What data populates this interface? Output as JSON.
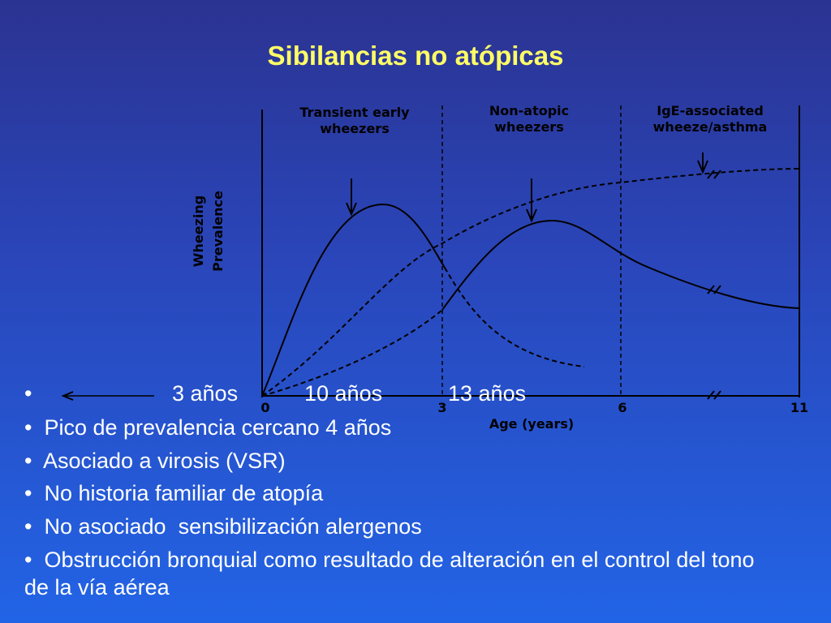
{
  "title": "Sibilancias no atópicas",
  "chart": {
    "region_labels": [
      [
        "Transient early",
        "wheezers"
      ],
      [
        "Non-atopic",
        "wheezers"
      ],
      [
        "IgE-associated",
        "wheeze/asthma"
      ]
    ],
    "y_label": [
      "Wheezing",
      "Prevalence"
    ],
    "x_ticks": [
      "0",
      "3",
      "6",
      "11"
    ],
    "x_label": "Age (years)"
  },
  "bullets": {
    "ages": [
      "3 años",
      "10 años",
      "13 años"
    ],
    "items": [
      "Pico de prevalencia cercano 4 años",
      "Asociado a virosis (VSR)",
      "No historia familiar de atopía",
      "No asociado  sensibilización alergenos",
      "Obstrucción bronquial como resultado de alteración en el control del tono de la vía aérea"
    ]
  }
}
